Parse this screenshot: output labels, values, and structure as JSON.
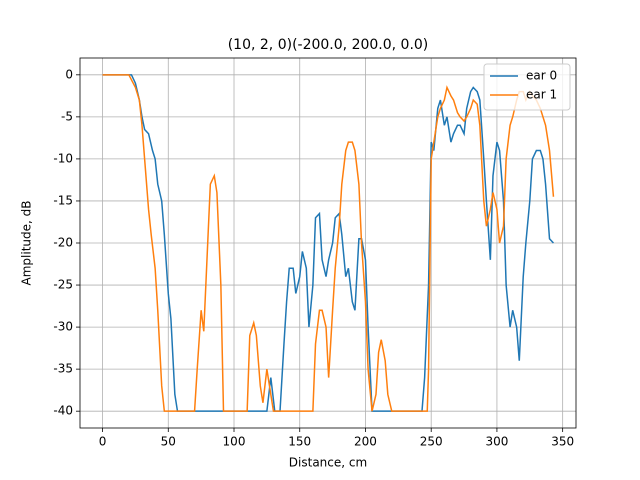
{
  "chart_data": {
    "type": "line",
    "title": "(10, 2, 0)(-200.0, 200.0, 0.0)",
    "x_label": "Distance, cm",
    "y_label": "Amplitude, dB",
    "xlim": [
      -17.15,
      360.15
    ],
    "ylim": [
      -42,
      2
    ],
    "xticks": [
      0,
      50,
      100,
      150,
      200,
      250,
      300,
      350
    ],
    "yticks": [
      -40,
      -35,
      -30,
      -25,
      -20,
      -15,
      -10,
      -5,
      0
    ],
    "grid": true,
    "legend": "upper right",
    "series": [
      {
        "name": "ear 0",
        "color": "#1f77b4",
        "x": [
          0,
          20,
          22,
          25,
          28,
          30,
          32,
          35,
          38,
          40,
          42,
          45,
          47,
          50,
          52,
          55,
          57,
          125,
          128,
          131,
          135,
          138,
          140,
          142,
          145,
          147,
          150,
          152,
          155,
          157,
          160,
          162,
          165,
          167,
          170,
          172,
          175,
          177,
          180,
          182,
          185,
          187,
          190,
          192,
          195,
          197,
          200,
          202,
          205,
          243,
          245,
          248,
          250,
          252,
          255,
          257,
          260,
          262,
          265,
          267,
          270,
          272,
          275,
          277,
          280,
          282,
          285,
          287,
          290,
          292,
          295,
          297,
          300,
          302,
          305,
          307,
          310,
          312,
          315,
          317,
          320,
          322,
          325,
          327,
          330,
          333,
          335,
          337,
          340,
          343
        ],
        "values": [
          0,
          0,
          0,
          -1,
          -3,
          -5,
          -6.5,
          -7,
          -9,
          -10,
          -13,
          -15,
          -19,
          -26,
          -29,
          -38,
          -40,
          -40,
          -36,
          -40,
          -40,
          -32,
          -27,
          -23,
          -23,
          -26,
          -24,
          -21,
          -23,
          -30,
          -25,
          -17,
          -16.5,
          -22,
          -24,
          -22,
          -20,
          -17,
          -16.5,
          -19,
          -24,
          -23,
          -27,
          -28,
          -19.5,
          -19.5,
          -22,
          -30,
          -40,
          -40,
          -36,
          -25,
          -8,
          -9,
          -4,
          -3,
          -6,
          -5,
          -8,
          -7,
          -6,
          -6,
          -7,
          -4,
          -2,
          -1.5,
          -2,
          -3,
          -10,
          -15,
          -22,
          -12,
          -8,
          -9,
          -15,
          -25,
          -30,
          -28,
          -30,
          -34,
          -24,
          -20,
          -15,
          -10,
          -9,
          -9,
          -10,
          -13,
          -19.5,
          -20
        ]
      },
      {
        "name": "ear 1",
        "color": "#ff7f0e",
        "x": [
          0,
          20,
          25,
          28,
          30,
          32,
          35,
          37,
          40,
          42,
          45,
          47,
          70,
          72,
          75,
          77,
          80,
          82,
          85,
          87,
          90,
          92,
          110,
          112,
          115,
          117,
          120,
          122,
          125,
          127,
          130,
          160,
          162,
          165,
          167,
          170,
          172,
          175,
          177,
          180,
          182,
          185,
          187,
          190,
          192,
          195,
          197,
          200,
          202,
          205,
          208,
          210,
          212,
          215,
          217,
          220,
          247,
          248,
          250,
          252,
          255,
          257,
          260,
          262,
          265,
          267,
          270,
          272,
          275,
          277,
          280,
          282,
          285,
          287,
          290,
          292,
          295,
          297,
          300,
          302,
          305,
          307,
          310,
          312,
          315,
          317,
          320,
          322,
          325,
          327,
          330,
          333,
          337,
          340,
          343
        ],
        "values": [
          0,
          0,
          -1.5,
          -3,
          -6,
          -10,
          -16,
          -19,
          -23,
          -28,
          -37,
          -40,
          -40,
          -35,
          -28,
          -30.5,
          -20,
          -13,
          -12,
          -14,
          -25,
          -40,
          -40,
          -31,
          -29.5,
          -31,
          -37,
          -39,
          -35,
          -37,
          -40,
          -40,
          -32,
          -28,
          -28,
          -30,
          -36,
          -28,
          -23,
          -18,
          -13,
          -9,
          -8,
          -8,
          -9,
          -13,
          -20,
          -27,
          -35,
          -40,
          -38,
          -33,
          -31.5,
          -34,
          -38,
          -40,
          -40,
          -35,
          -10,
          -8,
          -5,
          -4,
          -3,
          -1.5,
          -2.5,
          -3,
          -4.5,
          -5,
          -5.5,
          -5,
          -4,
          -3,
          -3.5,
          -6,
          -15,
          -18,
          -16,
          -14,
          -16,
          -20,
          -18,
          -10,
          -6,
          -5,
          -3,
          -2,
          -2,
          -3,
          -2,
          -2.5,
          -3,
          -4,
          -6,
          -9,
          -14.5
        ]
      }
    ]
  }
}
